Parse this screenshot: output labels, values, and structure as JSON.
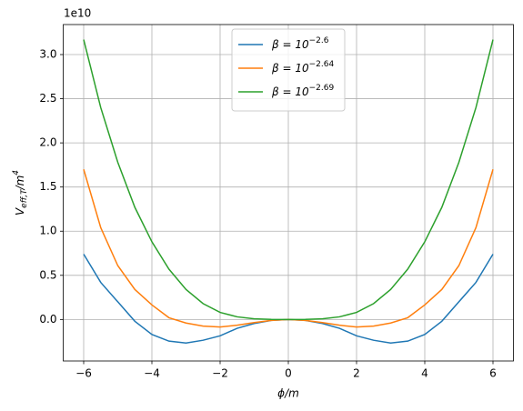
{
  "chart_data": {
    "type": "line",
    "offset_text": "1e10",
    "xlabel": "ϕ/m",
    "ylabel": {
      "main": "V",
      "sub": "eff,T",
      "rest": "/m",
      "sup": "4"
    },
    "x": [
      -6,
      -5.5,
      -5,
      -4.5,
      -4,
      -3.5,
      -3,
      -2.5,
      -2,
      -1.5,
      -1,
      -0.5,
      0,
      0.5,
      1,
      1.5,
      2,
      2.5,
      3,
      3.5,
      4,
      4.5,
      5,
      5.5,
      6
    ],
    "series": [
      {
        "name": "β = 10",
        "exponent": "−2.6",
        "color": "#1f77b4",
        "values": [
          0.74,
          0.42,
          0.2,
          -0.02,
          -0.17,
          -0.245,
          -0.267,
          -0.235,
          -0.185,
          -0.1,
          -0.045,
          -0.01,
          0,
          -0.01,
          -0.045,
          -0.1,
          -0.185,
          -0.235,
          -0.267,
          -0.245,
          -0.17,
          -0.02,
          0.2,
          0.42,
          0.74
        ]
      },
      {
        "name": "β = 10",
        "exponent": "−2.64",
        "color": "#ff7f0e",
        "values": [
          1.7,
          1.04,
          0.61,
          0.34,
          0.165,
          0.02,
          -0.04,
          -0.075,
          -0.085,
          -0.065,
          -0.035,
          -0.01,
          0,
          -0.01,
          -0.035,
          -0.065,
          -0.085,
          -0.075,
          -0.04,
          0.02,
          0.165,
          0.34,
          0.61,
          1.04,
          1.7
        ]
      },
      {
        "name": "β = 10",
        "exponent": "−2.69",
        "color": "#2ca02c",
        "values": [
          3.17,
          2.4,
          1.78,
          1.27,
          0.88,
          0.57,
          0.34,
          0.18,
          0.08,
          0.03,
          0.008,
          0.001,
          0,
          0.001,
          0.008,
          0.03,
          0.08,
          0.18,
          0.34,
          0.57,
          0.88,
          1.27,
          1.78,
          2.4,
          3.17
        ]
      }
    ],
    "xlim": [
      -6.6,
      6.6
    ],
    "ylim": [
      -0.47,
      3.34
    ],
    "xticks": [
      {
        "value": -6,
        "label": "−6"
      },
      {
        "value": -4,
        "label": "−4"
      },
      {
        "value": -2,
        "label": "−2"
      },
      0,
      2,
      4,
      6
    ],
    "yticks": [
      {
        "value": 0,
        "label": "0.0"
      },
      0.5,
      {
        "value": 1,
        "label": "1.0"
      },
      1.5,
      {
        "value": 2,
        "label": "2.0"
      },
      2.5,
      {
        "value": 3,
        "label": "3.0"
      }
    ],
    "grid": true,
    "legend": "upper center"
  }
}
